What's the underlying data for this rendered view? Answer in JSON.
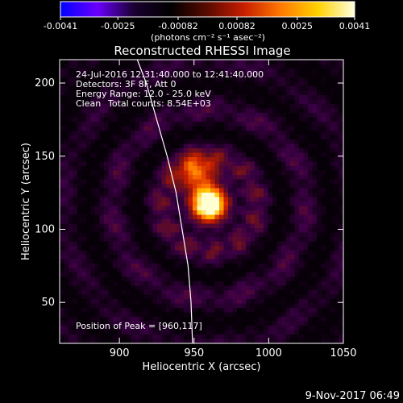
{
  "colors": {
    "background": "#000000",
    "foreground": "#ffffff",
    "limb": "#ffffff"
  },
  "colorbar": {
    "ticks": [
      "-0.0041",
      "-0.0025",
      "-0.00082",
      "0.00082",
      "0.0025",
      "0.0041"
    ],
    "unit_label": "(photons cm⁻² s⁻¹ asec⁻²)",
    "range": [
      -0.0041,
      0.0041
    ],
    "colormap": [
      "#0000ff",
      "#6a00ff",
      "#1a0030",
      "#000000",
      "#5a0a00",
      "#c81e00",
      "#ff7a00",
      "#ffd200",
      "#ffffe0"
    ]
  },
  "header": {
    "line1": "24-Jul-2016 12:31:40.000 to 12:41:40.000",
    "line2": "Detectors: 3F 8F, Att 0",
    "line3": "Energy Range: 12.0 - 25.0 keV",
    "line4a": "Clean",
    "line4b": "Total counts: 8.54E+03"
  },
  "peak_label": "Position of Peak = [960,117]",
  "footer_date": "9-Nov-2017 06:49",
  "chart_data": {
    "type": "heatmap",
    "title": "Reconstructed RHESSI Image",
    "xlabel": "Heliocentric X (arcsec)",
    "ylabel": "Heliocentric Y (arcsec)",
    "xlim": [
      860,
      1050
    ],
    "ylim": [
      22,
      216
    ],
    "xticks": [
      "900",
      "950",
      "1000",
      "1050"
    ],
    "yticks": [
      "50",
      "100",
      "150",
      "200"
    ],
    "xtick_values": [
      900,
      950,
      1000,
      1050
    ],
    "ytick_values": [
      50,
      100,
      150,
      200
    ],
    "peak": [
      960,
      117
    ],
    "source_components": [
      {
        "x": 960,
        "y": 117,
        "amplitude": 1.0
      },
      {
        "x": 952,
        "y": 138,
        "amplitude": 0.55
      }
    ],
    "limb": [
      [
        912,
        216
      ],
      [
        918,
        200
      ],
      [
        925,
        175
      ],
      [
        932,
        150
      ],
      [
        938,
        125
      ],
      [
        942,
        100
      ],
      [
        946,
        75
      ],
      [
        948,
        50
      ],
      [
        949,
        22
      ]
    ]
  }
}
